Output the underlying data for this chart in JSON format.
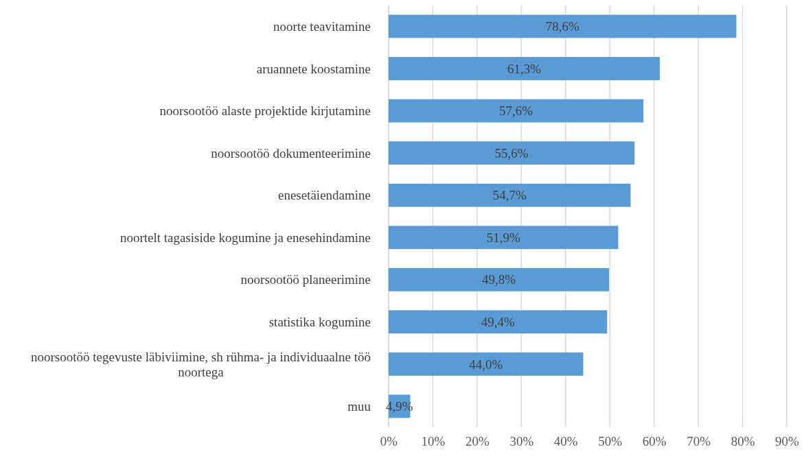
{
  "chart_data": {
    "type": "bar",
    "orientation": "horizontal",
    "categories": [
      "noorte teavitamine",
      "aruannete koostamine",
      "noorsootöö alaste projektide kirjutamine",
      "noorsootöö dokumenteerimine",
      "enesetäiendamine",
      "noortelt tagasiside kogumine ja enesehindamine",
      "noorsootöö planeerimine",
      "statistika kogumine",
      "noorsootöö tegevuste läbiviimine, sh rühma- ja individuaalne töö noortega",
      "muu"
    ],
    "values": [
      78.6,
      61.3,
      57.6,
      55.6,
      54.7,
      51.9,
      49.8,
      49.4,
      44.0,
      4.9
    ],
    "value_labels": [
      "78,6%",
      "61,3%",
      "57,6%",
      "55,6%",
      "54,7%",
      "51,9%",
      "49,8%",
      "49,4%",
      "44,0%",
      "4,9%"
    ],
    "color": "#5b9bd5",
    "xlim": [
      0,
      90
    ],
    "xticks": [
      {
        "value": 0,
        "label": "0%"
      },
      {
        "value": 10,
        "label": "10%"
      },
      {
        "value": 20,
        "label": "20%"
      },
      {
        "value": 30,
        "label": "30%"
      },
      {
        "value": 40,
        "label": "40%"
      },
      {
        "value": 50,
        "label": "50%"
      },
      {
        "value": 60,
        "label": "60%"
      },
      {
        "value": 70,
        "label": "70%"
      },
      {
        "value": 80,
        "label": "80%"
      },
      {
        "value": 90,
        "label": "90%"
      }
    ],
    "grid": "x"
  }
}
